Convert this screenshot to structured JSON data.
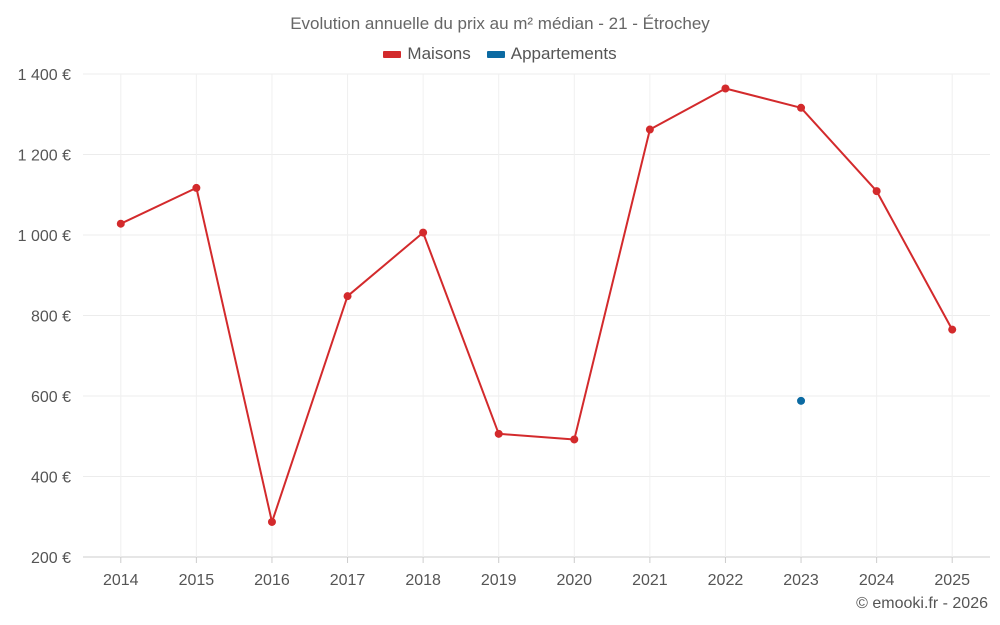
{
  "chart_data": {
    "type": "line",
    "title": "Evolution annuelle du prix au m² médian - 21 - Étrochey",
    "categories": [
      "2014",
      "2015",
      "2016",
      "2017",
      "2018",
      "2019",
      "2020",
      "2021",
      "2022",
      "2023",
      "2024",
      "2025"
    ],
    "series": [
      {
        "name": "Maisons",
        "color": "#d32a2c",
        "values": [
          1028,
          1117,
          287,
          848,
          1006,
          506,
          492,
          1262,
          1364,
          1316,
          1109,
          765
        ]
      },
      {
        "name": "Appartements",
        "color": "#0b6aa2",
        "values": [
          null,
          null,
          null,
          null,
          null,
          null,
          null,
          null,
          null,
          588,
          null,
          null
        ]
      }
    ],
    "ylim": [
      200,
      1400
    ],
    "yticks": [
      200,
      400,
      600,
      800,
      1000,
      1200,
      1400
    ],
    "ytick_labels": [
      "200 €",
      "400 €",
      "600 €",
      "800 €",
      "1 000 €",
      "1 200 €",
      "1 400 €"
    ],
    "grid": true,
    "legend": "top-center",
    "xlabel": "",
    "ylabel": ""
  },
  "credit": "© emooki.fr - 2026"
}
